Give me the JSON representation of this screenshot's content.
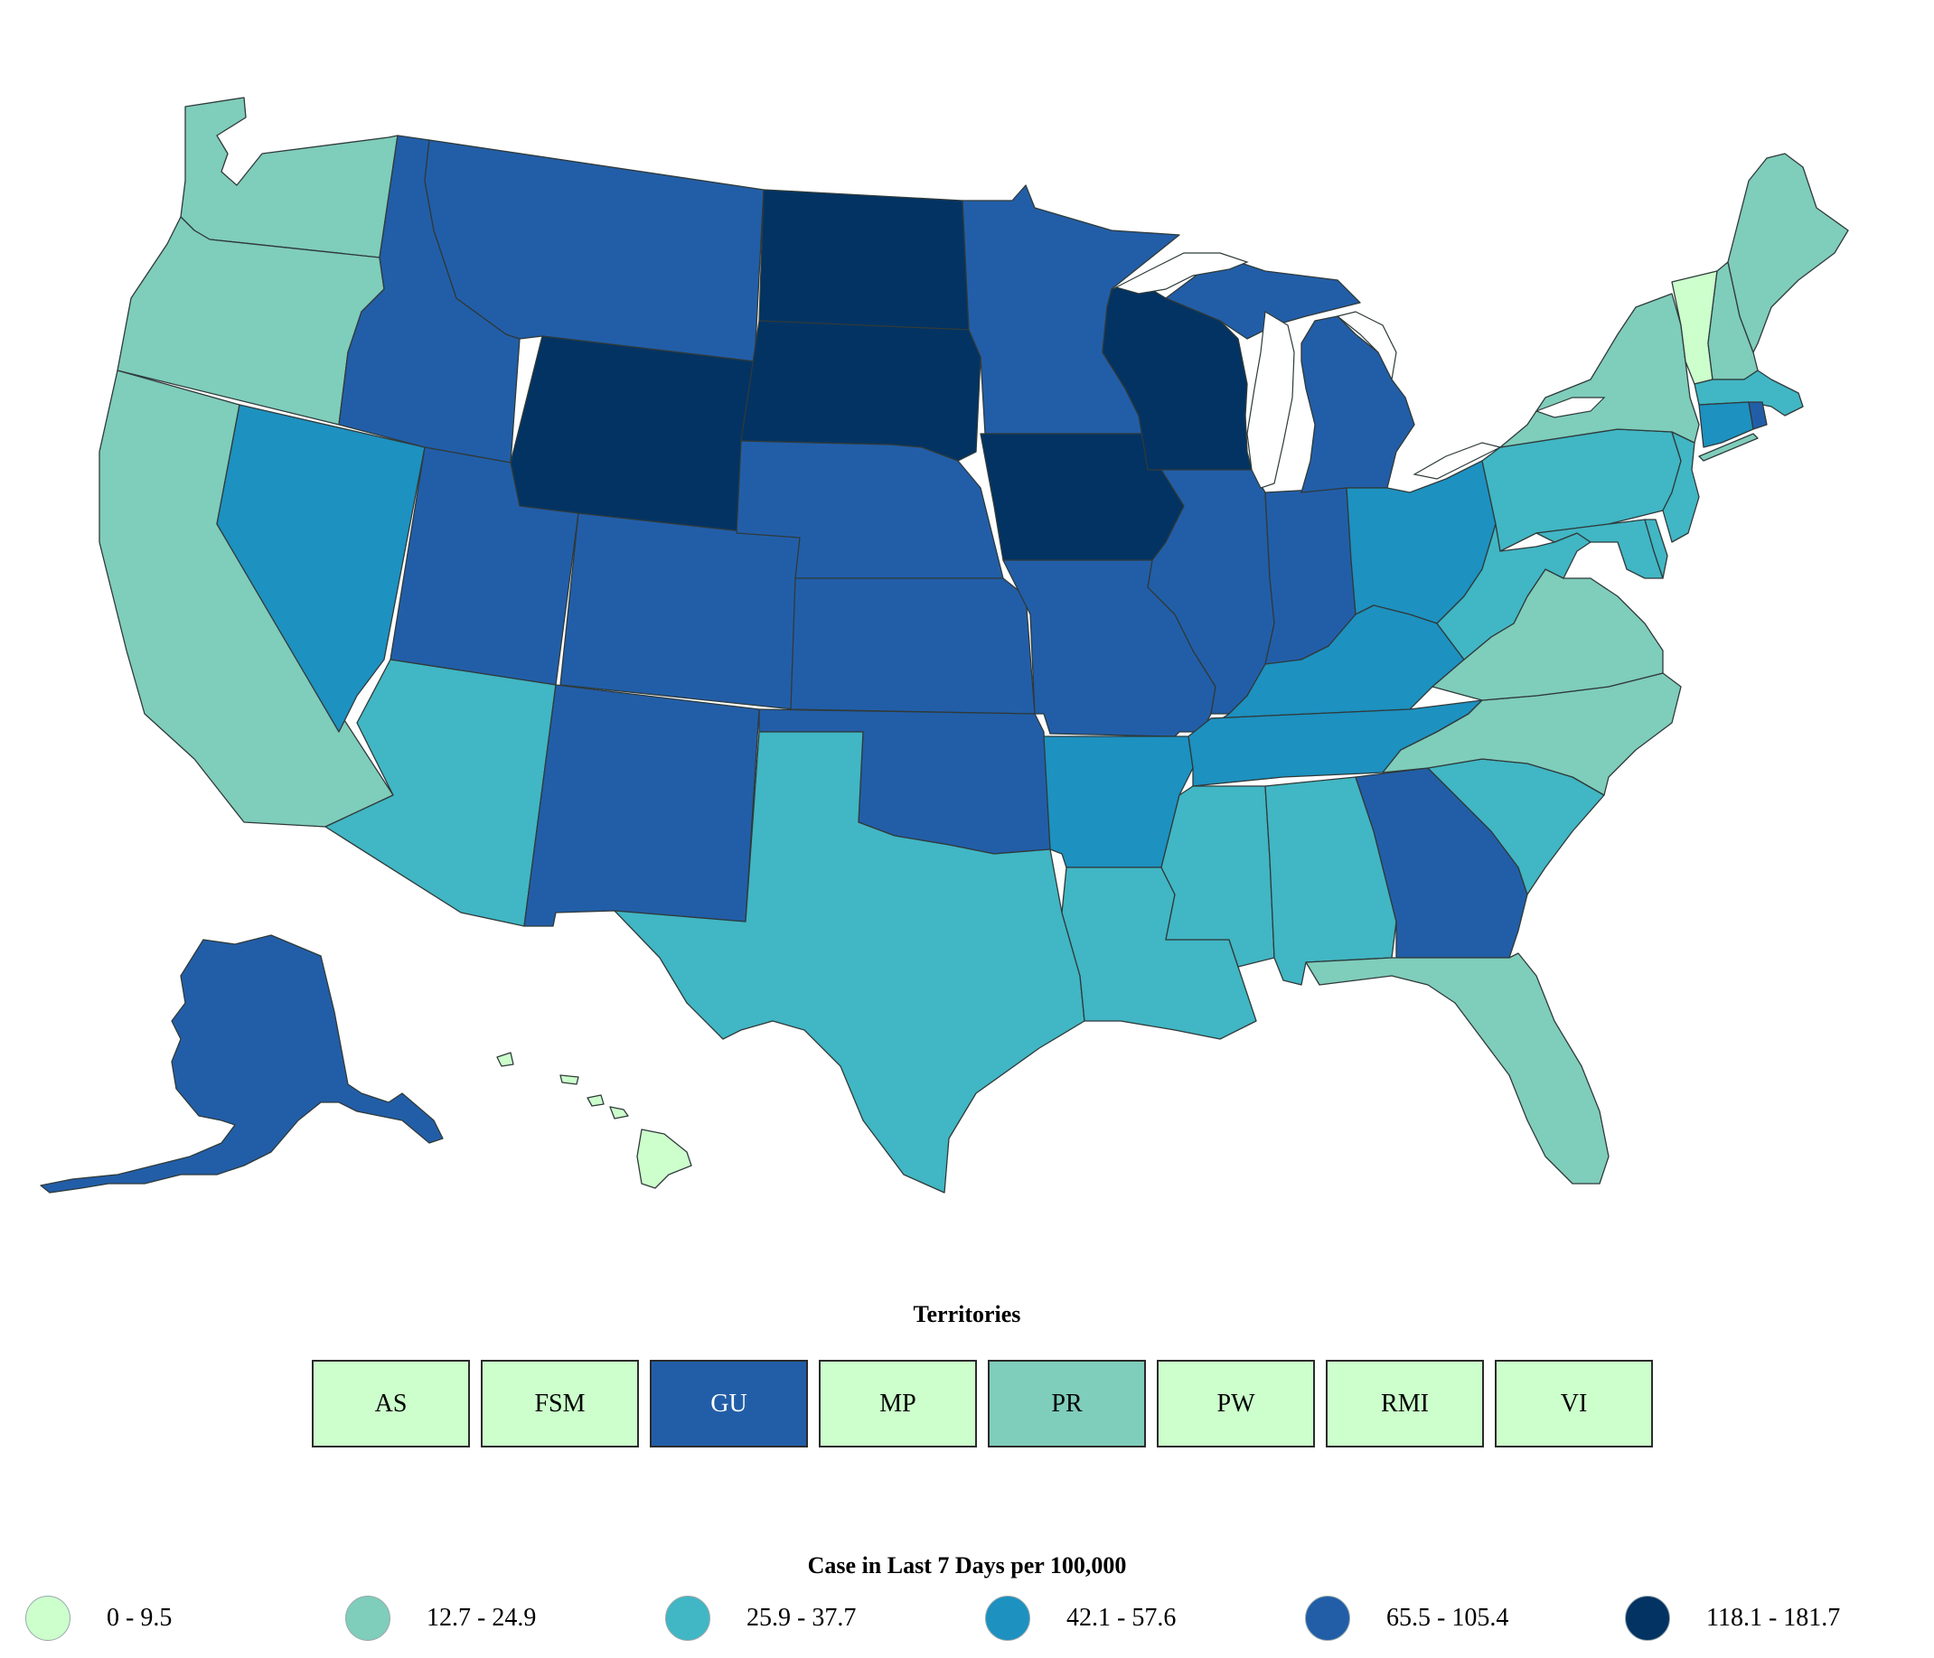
{
  "colors": {
    "bin0": "#ccffcc",
    "bin1": "#7fcdbb",
    "bin2": "#41b6c4",
    "bin3": "#1d91c0",
    "bin4": "#225ea8",
    "bin5": "#0c2c84",
    "bin5_display": "#023363"
  },
  "states": {
    "WA": "bin1",
    "OR": "bin1",
    "CA": "bin1",
    "NV": "bin3",
    "ID": "bin4",
    "MT": "bin4",
    "WY": "bin5",
    "UT": "bin4",
    "AZ": "bin2",
    "CO": "bin4",
    "NM": "bin4",
    "ND": "bin5",
    "SD": "bin5",
    "NE": "bin4",
    "KS": "bin4",
    "OK": "bin4",
    "TX": "bin2",
    "MN": "bin4",
    "IA": "bin5",
    "MO": "bin4",
    "AR": "bin3",
    "LA": "bin2",
    "WI": "bin5",
    "IL": "bin4",
    "MI": "bin4",
    "IN": "bin4",
    "OH": "bin3",
    "KY": "bin3",
    "TN": "bin3",
    "MS": "bin2",
    "AL": "bin2",
    "GA": "bin4",
    "FL": "bin1",
    "SC": "bin2",
    "NC": "bin1",
    "VA": "bin1",
    "WV": "bin2",
    "PA": "bin2",
    "NY": "bin1",
    "VT": "bin0",
    "NH": "bin1",
    "ME": "bin1",
    "MA": "bin2",
    "CT": "bin3",
    "RI": "bin4",
    "NJ": "bin2",
    "DE": "bin2",
    "MD": "bin2",
    "AK": "bin4",
    "HI": "bin0"
  },
  "territories": {
    "title": "Territories",
    "items": [
      {
        "label": "AS",
        "bin": "bin0"
      },
      {
        "label": "FSM",
        "bin": "bin0"
      },
      {
        "label": "GU",
        "bin": "bin4"
      },
      {
        "label": "MP",
        "bin": "bin0"
      },
      {
        "label": "PR",
        "bin": "bin1"
      },
      {
        "label": "PW",
        "bin": "bin0"
      },
      {
        "label": "RMI",
        "bin": "bin0"
      },
      {
        "label": "VI",
        "bin": "bin0"
      }
    ]
  },
  "legend": {
    "title": "Case in Last 7 Days per 100,000",
    "items": [
      {
        "label": "0 - 9.5",
        "bin": "bin0"
      },
      {
        "label": "12.7 - 24.9",
        "bin": "bin1"
      },
      {
        "label": "25.9 - 37.7",
        "bin": "bin2"
      },
      {
        "label": "42.1 - 57.6",
        "bin": "bin3"
      },
      {
        "label": "65.5 - 105.4",
        "bin": "bin4"
      },
      {
        "label": "118.1 - 181.7",
        "bin": "bin5"
      }
    ]
  }
}
